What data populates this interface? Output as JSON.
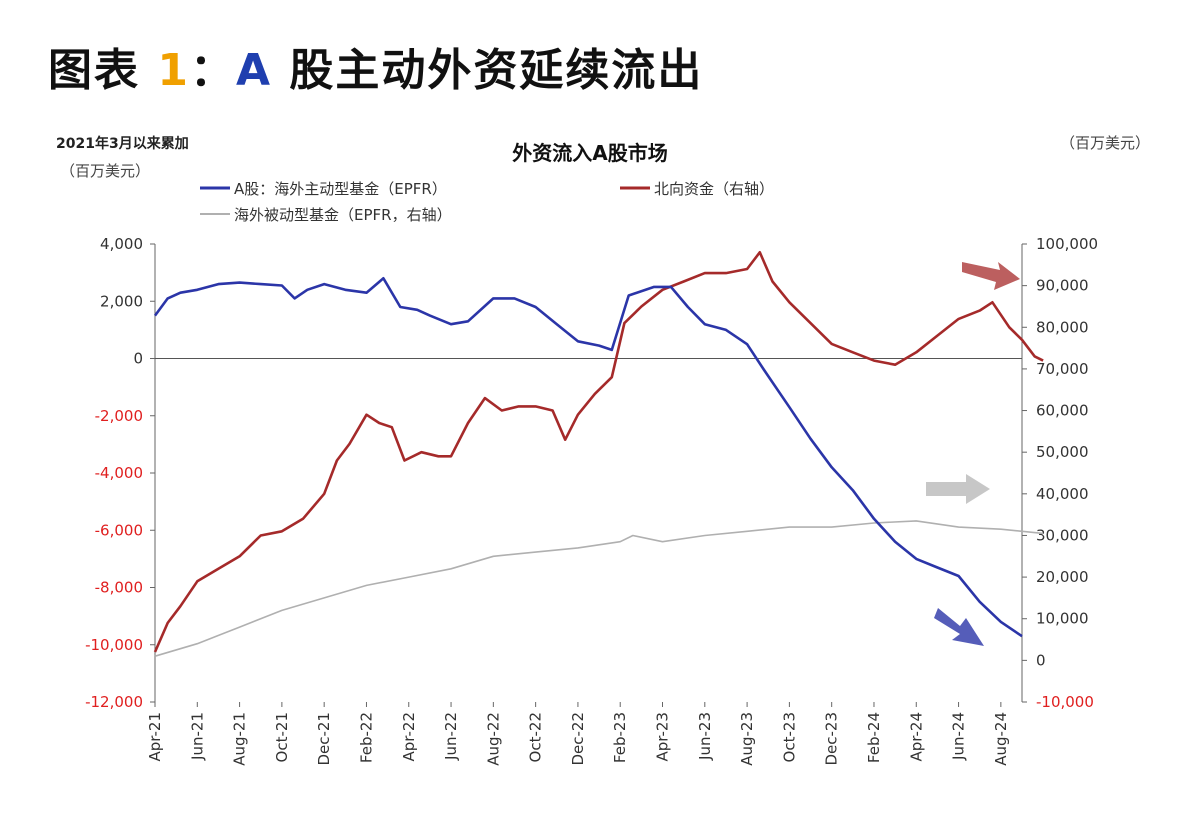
{
  "heading": {
    "prefix": "图表 ",
    "number": "1",
    "colon": "：",
    "letter": "A",
    "rest": " 股主动外资延续流出"
  },
  "chart_data": {
    "type": "line",
    "title": "外资流入A股市场",
    "left_axis_label_1": "2021年3月以来累加",
    "left_axis_label_2": "（百万美元）",
    "right_axis_label": "（百万美元）",
    "x_ticks": [
      "Apr-21",
      "Jun-21",
      "Aug-21",
      "Oct-21",
      "Dec-21",
      "Feb-22",
      "Apr-22",
      "Jun-22",
      "Aug-22",
      "Oct-22",
      "Dec-22",
      "Feb-23",
      "Apr-23",
      "Jun-23",
      "Aug-23",
      "Oct-23",
      "Dec-23",
      "Feb-24",
      "Apr-24",
      "Jun-24",
      "Aug-24"
    ],
    "y_left": {
      "min": -12000,
      "max": 4000,
      "step": 2000,
      "ticks": [
        "4,000",
        "2,000",
        "0",
        "-2,000",
        "-4,000",
        "-6,000",
        "-8,000",
        "-10,000",
        "-12,000"
      ],
      "negative_color": "#E02020"
    },
    "y_right": {
      "min": -10000,
      "max": 100000,
      "step": 10000,
      "ticks": [
        "100,000",
        "90,000",
        "80,000",
        "70,000",
        "60,000",
        "50,000",
        "40,000",
        "30,000",
        "20,000",
        "10,000",
        "0",
        "-10,000"
      ],
      "negative_color": "#E02020"
    },
    "series": [
      {
        "name": "A股：海外主动型基金（EPFR）",
        "axis": "left",
        "color": "#2B35A8",
        "points": [
          [
            0,
            1500
          ],
          [
            0.3,
            2100
          ],
          [
            0.6,
            2300
          ],
          [
            1,
            2400
          ],
          [
            1.5,
            2600
          ],
          [
            2,
            2650
          ],
          [
            2.5,
            2600
          ],
          [
            3,
            2550
          ],
          [
            3.3,
            2100
          ],
          [
            3.6,
            2400
          ],
          [
            4,
            2600
          ],
          [
            4.5,
            2400
          ],
          [
            5,
            2300
          ],
          [
            5.4,
            2800
          ],
          [
            5.8,
            1800
          ],
          [
            6.2,
            1700
          ],
          [
            6.5,
            1500
          ],
          [
            7,
            1200
          ],
          [
            7.4,
            1300
          ],
          [
            8,
            2100
          ],
          [
            8.5,
            2100
          ],
          [
            9,
            1800
          ],
          [
            9.5,
            1200
          ],
          [
            10,
            600
          ],
          [
            10.5,
            450
          ],
          [
            10.8,
            300
          ],
          [
            11.2,
            2200
          ],
          [
            11.8,
            2500
          ],
          [
            12.2,
            2500
          ],
          [
            12.6,
            1800
          ],
          [
            13,
            1200
          ],
          [
            13.5,
            1000
          ],
          [
            14,
            500
          ],
          [
            14.4,
            -400
          ],
          [
            15,
            -1700
          ],
          [
            15.5,
            -2800
          ],
          [
            16,
            -3800
          ],
          [
            16.5,
            -4600
          ],
          [
            17,
            -5600
          ],
          [
            17.5,
            -6400
          ],
          [
            18,
            -7000
          ],
          [
            18.5,
            -7300
          ],
          [
            19,
            -7600
          ],
          [
            19.5,
            -8500
          ],
          [
            20,
            -9200
          ],
          [
            20.5,
            -9700
          ]
        ]
      },
      {
        "name": "北向资金（右轴）",
        "axis": "right",
        "color": "#A52A2A",
        "points": [
          [
            0,
            2000
          ],
          [
            0.3,
            9000
          ],
          [
            0.6,
            13000
          ],
          [
            1,
            19000
          ],
          [
            1.5,
            22000
          ],
          [
            2,
            25000
          ],
          [
            2.5,
            30000
          ],
          [
            3,
            31000
          ],
          [
            3.5,
            34000
          ],
          [
            4,
            40000
          ],
          [
            4.3,
            48000
          ],
          [
            4.6,
            52000
          ],
          [
            5,
            59000
          ],
          [
            5.3,
            57000
          ],
          [
            5.6,
            56000
          ],
          [
            5.9,
            48000
          ],
          [
            6.3,
            50000
          ],
          [
            6.7,
            49000
          ],
          [
            7,
            49000
          ],
          [
            7.4,
            57000
          ],
          [
            7.8,
            63000
          ],
          [
            8.2,
            60000
          ],
          [
            8.6,
            61000
          ],
          [
            9,
            61000
          ],
          [
            9.4,
            60000
          ],
          [
            9.7,
            53000
          ],
          [
            10,
            59000
          ],
          [
            10.4,
            64000
          ],
          [
            10.8,
            68000
          ],
          [
            11.1,
            81000
          ],
          [
            11.5,
            85000
          ],
          [
            12,
            89000
          ],
          [
            12.5,
            91000
          ],
          [
            13,
            93000
          ],
          [
            13.5,
            93000
          ],
          [
            14,
            94000
          ],
          [
            14.3,
            98000
          ],
          [
            14.6,
            91000
          ],
          [
            15,
            86000
          ],
          [
            15.5,
            81000
          ],
          [
            16,
            76000
          ],
          [
            16.5,
            74000
          ],
          [
            17,
            72000
          ],
          [
            17.5,
            71000
          ],
          [
            18,
            74000
          ],
          [
            18.5,
            78000
          ],
          [
            19,
            82000
          ],
          [
            19.5,
            84000
          ],
          [
            19.8,
            86000
          ],
          [
            20.2,
            80000
          ],
          [
            20.5,
            77000
          ],
          [
            20.8,
            73000
          ],
          [
            21,
            72000
          ]
        ]
      },
      {
        "name": "海外被动型基金（EPFR，右轴）",
        "axis": "right",
        "color": "#B0B0B0",
        "points": [
          [
            0,
            1000
          ],
          [
            1,
            4000
          ],
          [
            2,
            8000
          ],
          [
            3,
            12000
          ],
          [
            4,
            15000
          ],
          [
            5,
            18000
          ],
          [
            6,
            20000
          ],
          [
            7,
            22000
          ],
          [
            8,
            25000
          ],
          [
            9,
            26000
          ],
          [
            10,
            27000
          ],
          [
            11,
            28500
          ],
          [
            11.3,
            30000
          ],
          [
            12,
            28500
          ],
          [
            13,
            30000
          ],
          [
            14,
            31000
          ],
          [
            15,
            32000
          ],
          [
            16,
            32000
          ],
          [
            17,
            33000
          ],
          [
            18,
            33500
          ],
          [
            19,
            32000
          ],
          [
            20,
            31500
          ],
          [
            21,
            30500
          ]
        ]
      }
    ]
  }
}
